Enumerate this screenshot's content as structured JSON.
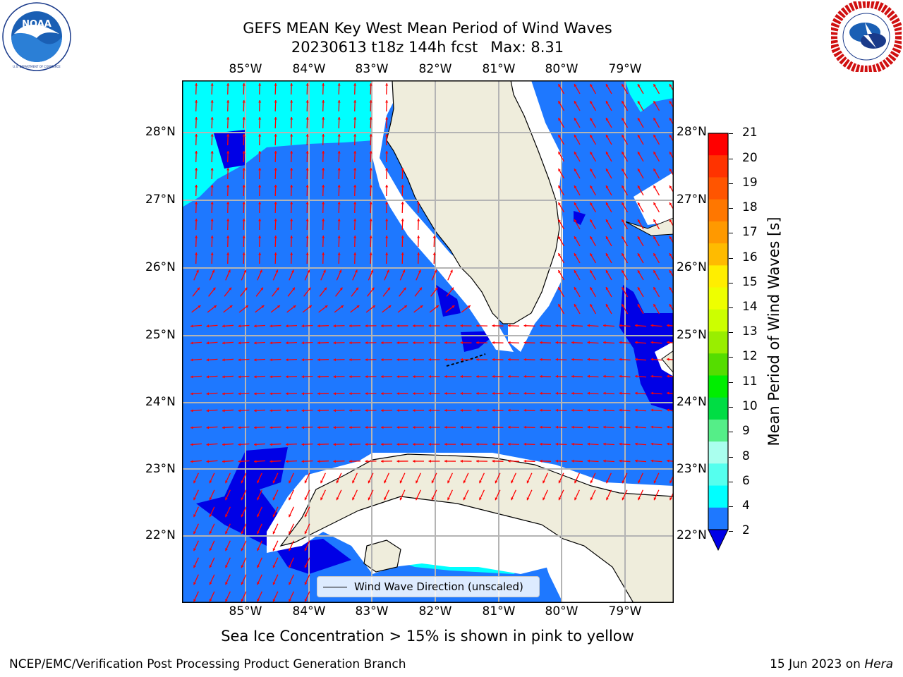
{
  "header": {
    "title_line1": "GEFS MEAN Key West Mean Period of Wind Waves",
    "title_line2": "20230613 t18z 144h fcst",
    "max_label": "Max: 8.31"
  },
  "logos": {
    "noaa": {
      "text": "NOAA",
      "ring_text": "NATIONAL OCEANIC AND ATMOSPHERIC ADMINISTRATION · U.S. DEPARTMENT OF COMMERCE"
    },
    "nws": {
      "ring_text": "NATIONAL WEATHER SERVICE"
    }
  },
  "map": {
    "lon_labels": [
      "85°W",
      "84°W",
      "83°W",
      "82°W",
      "81°W",
      "80°W",
      "79°W"
    ],
    "lat_labels": [
      "28°N",
      "27°N",
      "26°N",
      "25°N",
      "24°N",
      "23°N",
      "22°N"
    ],
    "legend_label": "Wind Wave Direction (unscaled)",
    "colors": {
      "ocean_band_2_4": "#1e78ff",
      "band_below_2": "#0000e6",
      "band_4_6": "#00ffff",
      "land": "#efeddc",
      "grid": "#b4b4b4",
      "arrow": "#ff0000"
    }
  },
  "colorbar": {
    "label": "Mean Period of Wind Waves [s]",
    "ticks": [
      "21",
      "20",
      "19",
      "18",
      "17",
      "16",
      "15",
      "14",
      "13",
      "12",
      "11",
      "10",
      "9",
      "8",
      "6",
      "4",
      "2"
    ],
    "band_colors": [
      "#ff0000",
      "#ff3300",
      "#ff5500",
      "#ff7700",
      "#ff9900",
      "#ffbb00",
      "#ffee00",
      "#eeff00",
      "#ccff00",
      "#99ee00",
      "#55dd00",
      "#00ee00",
      "#00dd44",
      "#55ee88",
      "#aaffee",
      "#55ffee",
      "#00ffff",
      "#1e78ff"
    ],
    "extend_color": "#0000e6"
  },
  "footer": {
    "sea_ice_note": "Sea Ice Concentration > 15% is shown in pink to yellow",
    "credit": "NCEP/EMC/Verification Post Processing Product Generation Branch",
    "date_prefix": "15 Jun 2023 on ",
    "date_machine": "Hera"
  }
}
